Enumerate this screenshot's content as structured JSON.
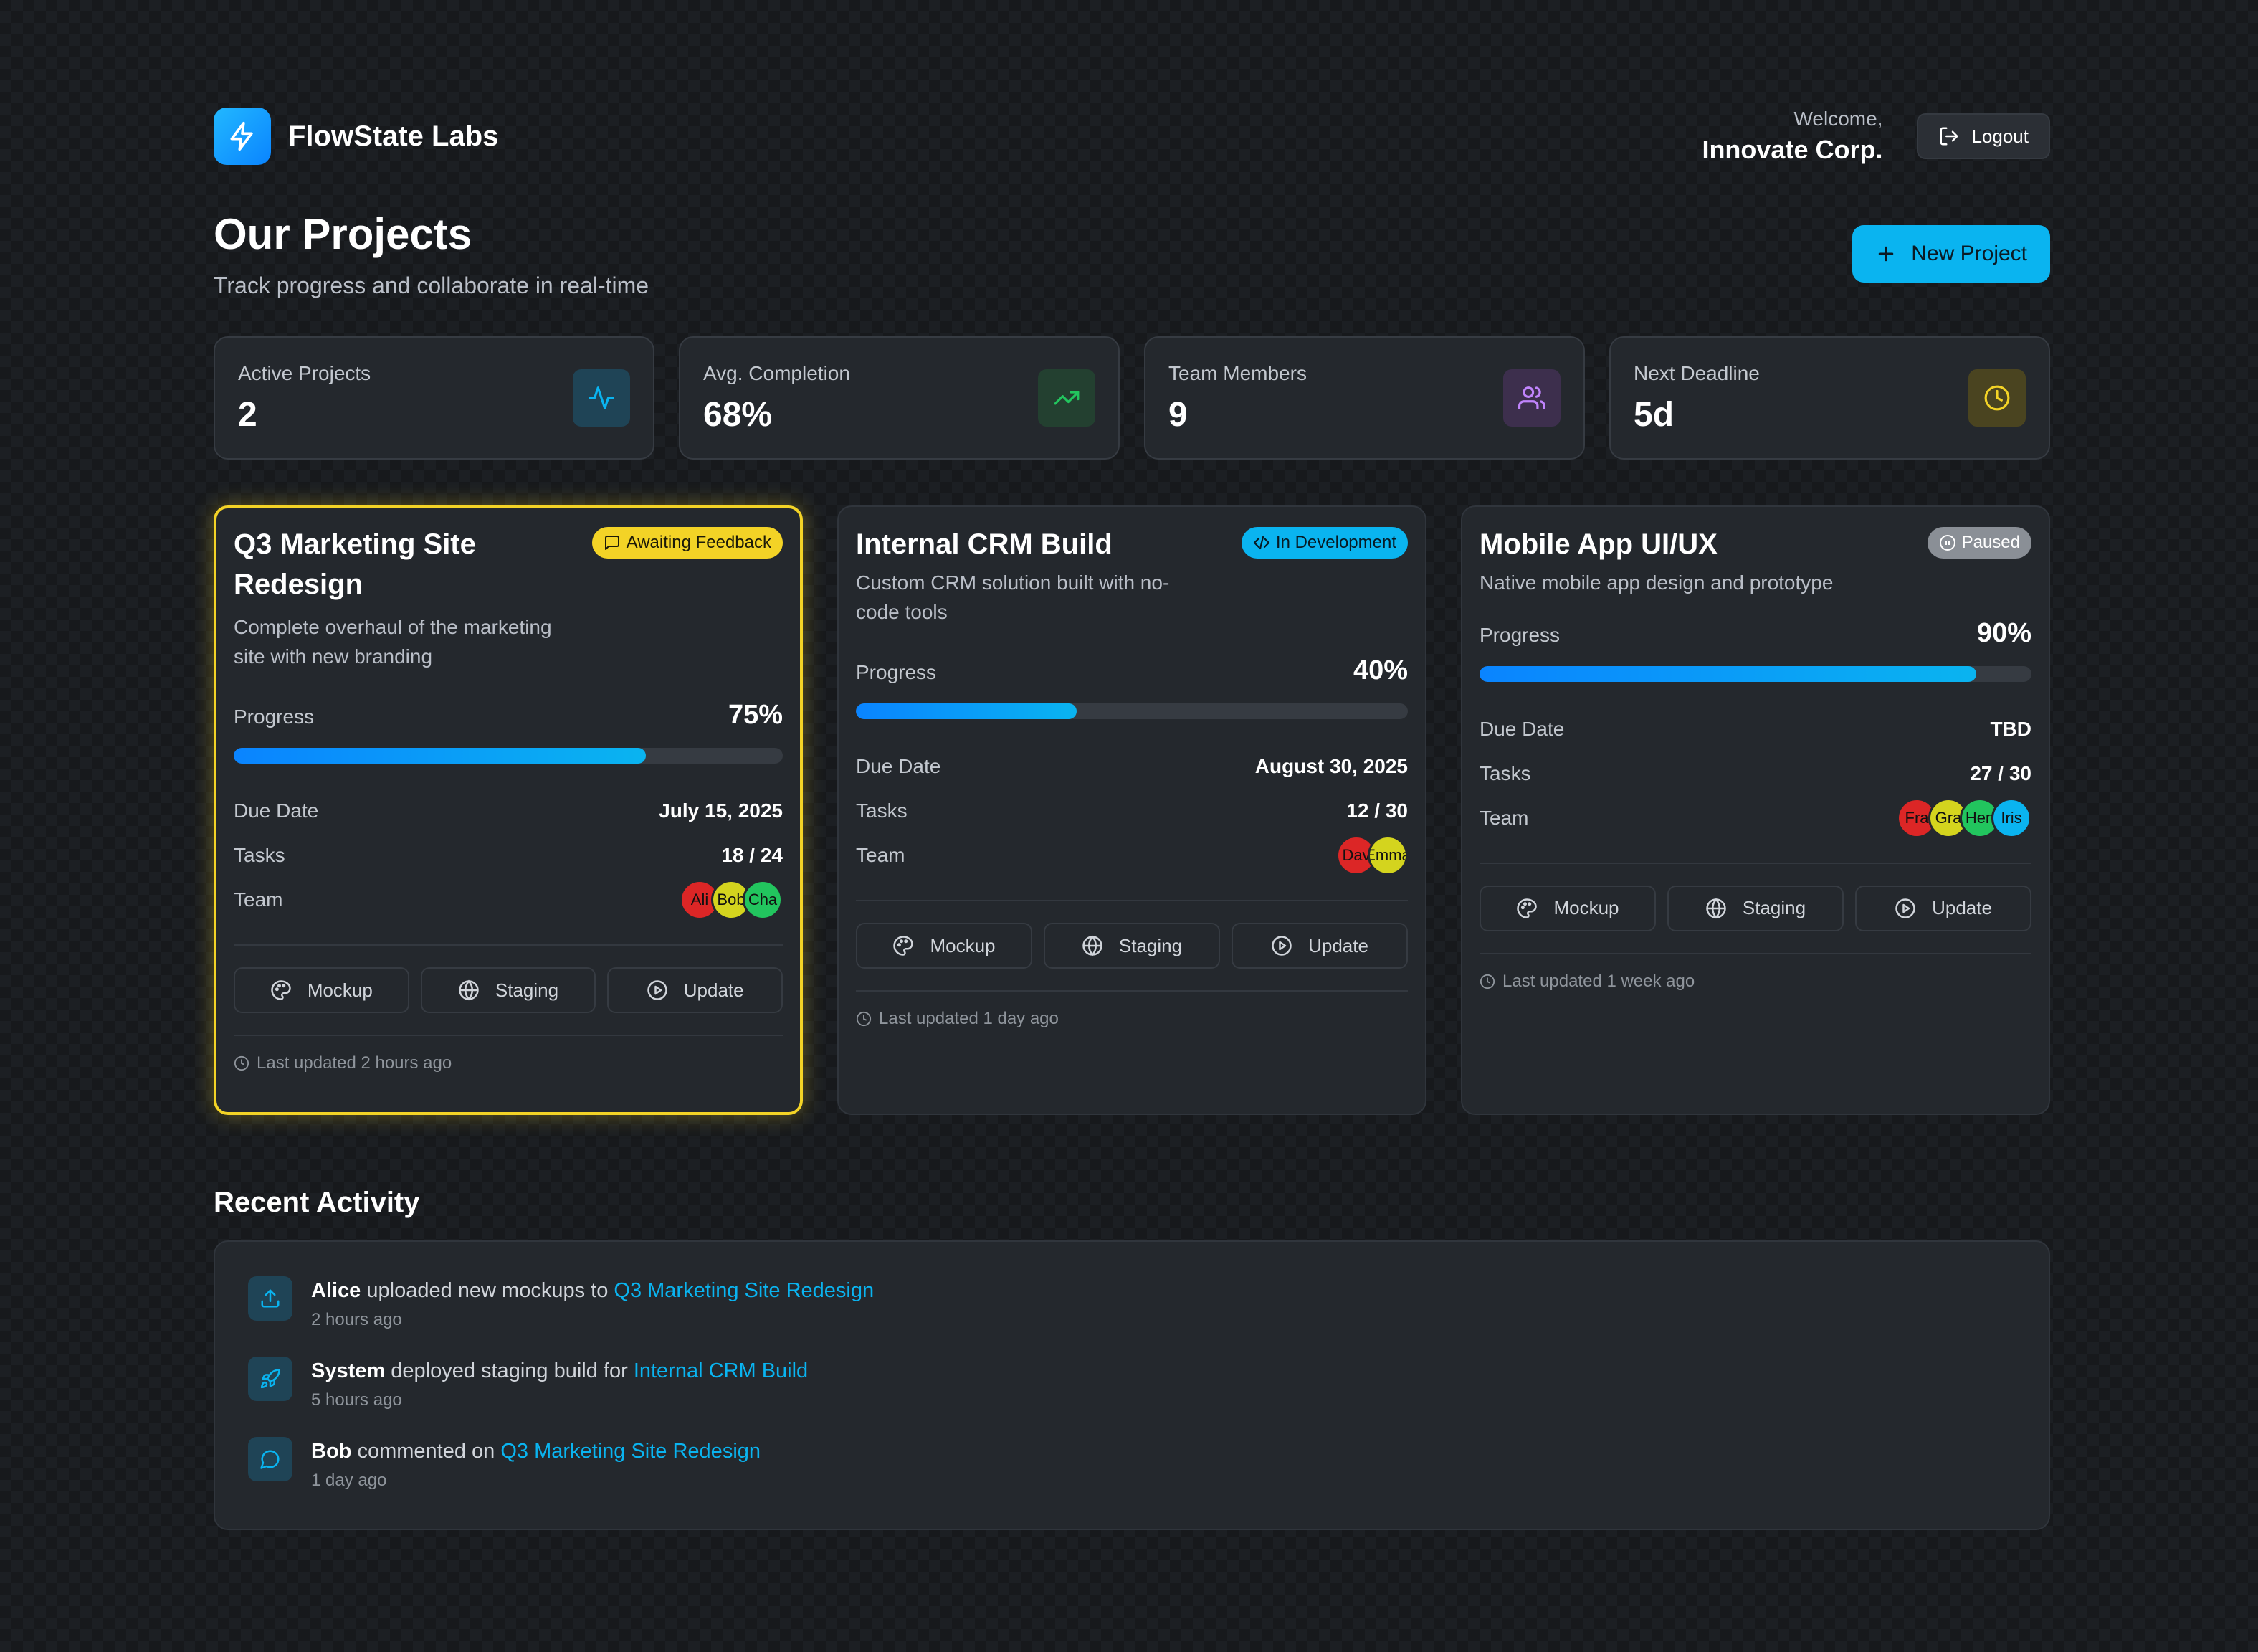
{
  "header": {
    "brand_name": "FlowState Labs",
    "welcome_label": "Welcome,",
    "company_name": "Innovate Corp.",
    "logout_label": "Logout"
  },
  "page": {
    "title": "Our Projects",
    "subtitle": "Track progress and collaborate in real-time",
    "new_project_label": "New Project"
  },
  "stats": [
    {
      "label": "Active Projects",
      "value": "2",
      "icon": "activity-icon",
      "color": "#0ab4f0"
    },
    {
      "label": "Avg. Completion",
      "value": "68%",
      "icon": "trending-up-icon",
      "color": "#22c55e"
    },
    {
      "label": "Team Members",
      "value": "9",
      "icon": "users-icon",
      "color": "#c084fc"
    },
    {
      "label": "Next Deadline",
      "value": "5d",
      "icon": "clock-icon",
      "color": "#f3d326"
    }
  ],
  "projects": [
    {
      "title": "Q3 Marketing Site Redesign",
      "description": "Complete overhaul of the marketing site with new branding",
      "status": "Awaiting Feedback",
      "progress_label": "Progress",
      "progress": "75%",
      "progress_fraction": 0.75,
      "due_label": "Due Date",
      "due_date": "July 15, 2025",
      "tasks_label": "Tasks",
      "tasks": "18 / 24",
      "team_label": "Team",
      "team": [
        "Ali",
        "Bob",
        "Cha"
      ],
      "actions": [
        "Mockup",
        "Staging",
        "Update"
      ],
      "last_updated": "Last updated 2 hours ago"
    },
    {
      "title": "Internal CRM Build",
      "description": "Custom CRM solution built with no-code tools",
      "status": "In Development",
      "progress_label": "Progress",
      "progress": "40%",
      "progress_fraction": 0.4,
      "due_label": "Due Date",
      "due_date": "August 30, 2025",
      "tasks_label": "Tasks",
      "tasks": "12 / 30",
      "team_label": "Team",
      "team": [
        "Dav",
        "Emma"
      ],
      "actions": [
        "Mockup",
        "Staging",
        "Update"
      ],
      "last_updated": "Last updated 1 day ago"
    },
    {
      "title": "Mobile App UI/UX",
      "description": "Native mobile app design and prototype",
      "status": "Paused",
      "progress_label": "Progress",
      "progress": "90%",
      "progress_fraction": 0.9,
      "due_label": "Due Date",
      "due_date": "TBD",
      "tasks_label": "Tasks",
      "tasks": "27 / 30",
      "team_label": "Team",
      "team": [
        "Fra",
        "Gra",
        "Hen",
        "Iris"
      ],
      "actions": [
        "Mockup",
        "Staging",
        "Update"
      ],
      "last_updated": "Last updated 1 week ago"
    }
  ],
  "avatar_colors": [
    "#dc2626",
    "#d4d41e",
    "#22c55e",
    "#0ab4f0"
  ],
  "activity": {
    "title": "Recent Activity",
    "items": [
      {
        "actor": "Alice",
        "action": "uploaded new mockups to",
        "target": "Q3 Marketing Site Redesign",
        "time": "2 hours ago",
        "icon": "upload-icon"
      },
      {
        "actor": "System",
        "action": "deployed staging build for",
        "target": "Internal CRM Build",
        "time": "5 hours ago",
        "icon": "rocket-icon"
      },
      {
        "actor": "Bob",
        "action": "commented on",
        "target": "Q3 Marketing Site Redesign",
        "time": "1 day ago",
        "icon": "message-icon"
      }
    ]
  }
}
